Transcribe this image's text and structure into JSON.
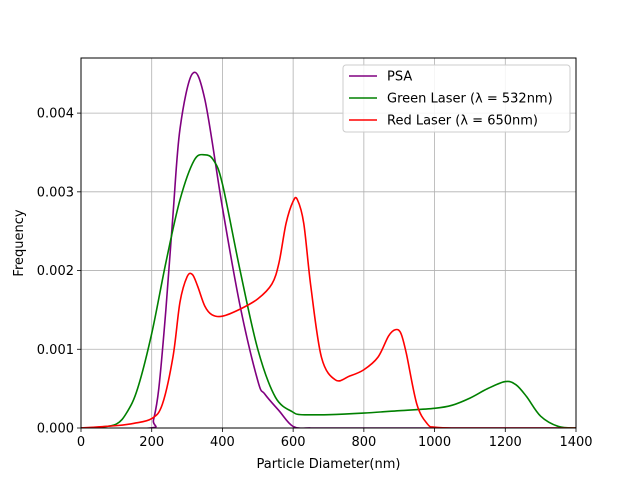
{
  "chart_data": {
    "type": "line",
    "xlabel": "Particle Diameter(nm)",
    "ylabel": "Frequency",
    "xlim": [
      0,
      1400
    ],
    "ylim": [
      0,
      0.0047
    ],
    "x_ticks": [
      0,
      200,
      400,
      600,
      800,
      1000,
      1200,
      1400
    ],
    "x_tick_labels": [
      "0",
      "200",
      "400",
      "600",
      "800",
      "1000",
      "1200",
      "1400"
    ],
    "y_ticks": [
      0,
      0.001,
      0.002,
      0.003,
      0.004
    ],
    "y_tick_labels": [
      "0.000",
      "0.001",
      "0.002",
      "0.003",
      "0.004"
    ],
    "grid": true,
    "legend_position": "top-right",
    "series": [
      {
        "name": "PSA",
        "color": "#800080",
        "x": [
          0,
          195,
          205,
          220,
          240,
          260,
          280,
          315,
          350,
          400,
          450,
          500,
          520,
          560,
          600,
          650,
          700,
          800,
          1000,
          1200,
          1400
        ],
        "y": [
          0,
          0,
          0.0001,
          0.0005,
          0.0015,
          0.0027,
          0.0038,
          0.0045,
          0.00418,
          0.0028,
          0.00155,
          0.0006,
          0.00043,
          0.00022,
          2e-05,
          0,
          0,
          0,
          0,
          0,
          0
        ]
      },
      {
        "name": "Green Laser (λ = 532nm)",
        "color": "#008000",
        "x": [
          0,
          50,
          100,
          130,
          160,
          200,
          240,
          280,
          320,
          350,
          375,
          400,
          450,
          500,
          550,
          600,
          620,
          650,
          700,
          800,
          900,
          1000,
          1050,
          1100,
          1150,
          1200,
          1230,
          1260,
          1300,
          1350,
          1400
        ],
        "y": [
          0,
          1e-05,
          5e-05,
          0.0002,
          0.0005,
          0.0012,
          0.0021,
          0.0029,
          0.0034,
          0.00347,
          0.0034,
          0.0031,
          0.002,
          0.001,
          0.00039,
          0.0002,
          0.00017,
          0.000168,
          0.000169,
          0.00019,
          0.00022,
          0.00025,
          0.00029,
          0.00038,
          0.0005,
          0.00059,
          0.00055,
          0.0004,
          0.00015,
          2e-05,
          0
        ]
      },
      {
        "name": "Red Laser (λ = 650nm)",
        "color": "#ff0000",
        "x": [
          0,
          100,
          150,
          200,
          230,
          260,
          280,
          300,
          315,
          330,
          350,
          370,
          400,
          450,
          500,
          540,
          560,
          580,
          600,
          612,
          630,
          650,
          680,
          720,
          760,
          800,
          840,
          870,
          890,
          905,
          920,
          950,
          980,
          1000,
          1050,
          1200,
          1400
        ],
        "y": [
          0,
          3e-05,
          6e-05,
          0.00012,
          0.0003,
          0.0009,
          0.0016,
          0.00192,
          0.00195,
          0.0018,
          0.00155,
          0.00144,
          0.00142,
          0.00151,
          0.00164,
          0.00183,
          0.0021,
          0.0026,
          0.00288,
          0.0029,
          0.0026,
          0.0018,
          0.0009,
          0.00061,
          0.00066,
          0.00074,
          0.0009,
          0.00117,
          0.00125,
          0.0012,
          0.00095,
          0.0003,
          5e-05,
          1e-05,
          0,
          0,
          0
        ]
      }
    ]
  }
}
